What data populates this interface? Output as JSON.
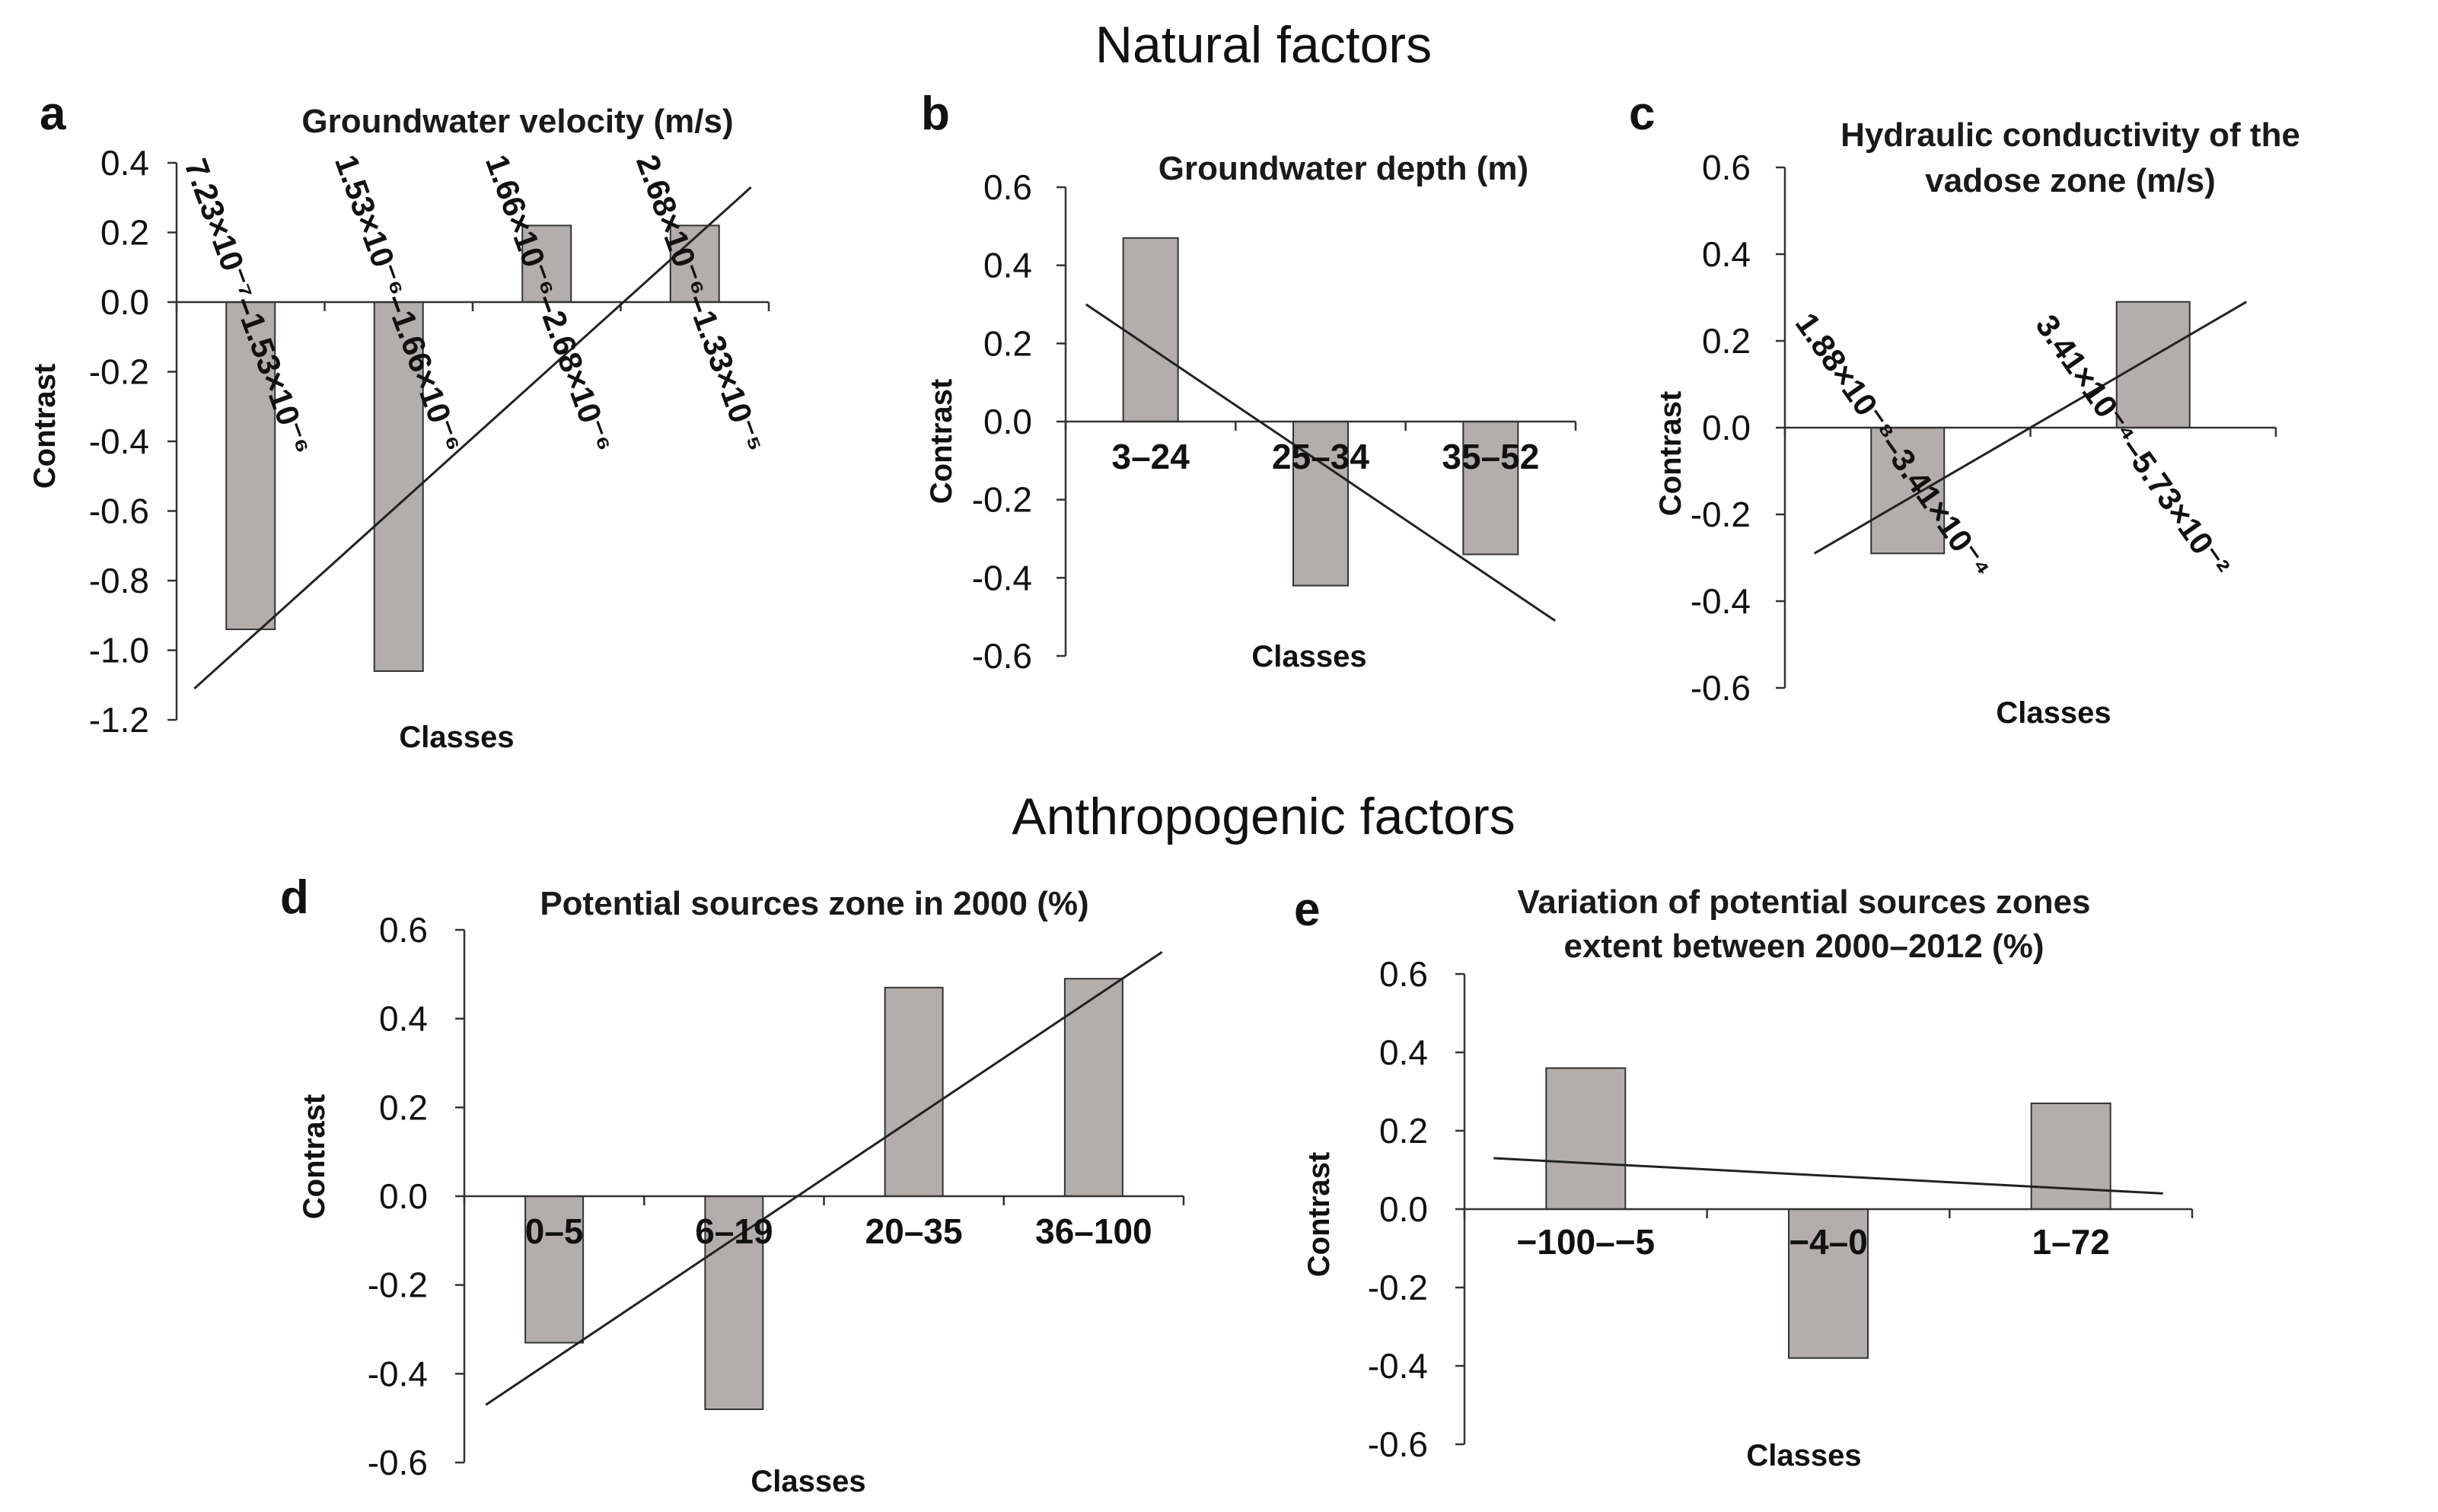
{
  "figure": {
    "section_natural": "Natural factors",
    "section_anthropogenic": "Anthropogenic factors"
  },
  "chart_data": [
    {
      "panel": "a",
      "type": "bar",
      "title": [
        "Groundwater velocity (m/s)"
      ],
      "xlabel": "Classes",
      "ylabel": "Contrast",
      "ylim": [
        -1.2,
        0.4
      ],
      "yticks": [
        0.4,
        0.2,
        0.0,
        -0.2,
        -0.4,
        -0.6,
        -0.8,
        -1.0,
        -1.2
      ],
      "ytick_labels": [
        "0.4",
        "0.2",
        "0.0",
        "-0.2",
        "-0.4",
        "-0.6",
        "-0.8",
        "-1.0",
        "-1.2"
      ],
      "categories": [
        "7.23×10⁻⁷–1.53×10⁻⁶",
        "1.53×10⁻⁶–1.66×10⁻⁶",
        "1.66×10⁻⁶–2.68×10⁻⁶",
        "2.68×10⁻⁶–1.33×10⁻⁵"
      ],
      "values": [
        -0.94,
        -1.06,
        0.22,
        0.22
      ],
      "trendline": [
        -1.11,
        0.33
      ],
      "rotated_labels": true
    },
    {
      "panel": "b",
      "type": "bar",
      "title": [
        "Groundwater depth (m)"
      ],
      "xlabel": "Classes",
      "ylabel": "Contrast",
      "ylim": [
        -0.6,
        0.6
      ],
      "yticks": [
        0.6,
        0.4,
        0.2,
        0.0,
        -0.2,
        -0.4,
        -0.6
      ],
      "ytick_labels": [
        "0.6",
        "0.4",
        "0.2",
        "0.0",
        "-0.2",
        "-0.4",
        "-0.6"
      ],
      "categories": [
        "3–24",
        "25–34",
        "35–52"
      ],
      "values": [
        0.47,
        -0.42,
        -0.34
      ],
      "trendline": [
        0.3,
        -0.51
      ],
      "rotated_labels": false
    },
    {
      "panel": "c",
      "type": "bar",
      "title": [
        "Hydraulic conductivity of the",
        "vadose zone (m/s)"
      ],
      "xlabel": "Classes",
      "ylabel": "Contrast",
      "ylim": [
        -0.6,
        0.6
      ],
      "yticks": [
        0.6,
        0.4,
        0.2,
        0.0,
        -0.2,
        -0.4,
        -0.6
      ],
      "ytick_labels": [
        "0.6",
        "0.4",
        "0.2",
        "0.0",
        "-0.2",
        "-0.4",
        "-0.6"
      ],
      "categories": [
        "1.88×10⁻⁸–3.41×10⁻⁴",
        "3.41×10⁻⁴–5.73×10⁻²"
      ],
      "values": [
        -0.29,
        0.29
      ],
      "trendline": [
        -0.29,
        0.29
      ],
      "rotated_labels": true
    },
    {
      "panel": "d",
      "type": "bar",
      "title": [
        "Potential sources zone in 2000 (%)"
      ],
      "xlabel": "Classes",
      "ylabel": "Contrast",
      "ylim": [
        -0.6,
        0.6
      ],
      "yticks": [
        0.6,
        0.4,
        0.2,
        0.0,
        -0.2,
        -0.4,
        -0.6
      ],
      "ytick_labels": [
        "0.6",
        "0.4",
        "0.2",
        "0.0",
        "-0.2",
        "-0.4",
        "-0.6"
      ],
      "categories": [
        "0–5",
        "6–19",
        "20–35",
        "36–100"
      ],
      "values": [
        -0.33,
        -0.48,
        0.47,
        0.49
      ],
      "trendline": [
        -0.47,
        0.55
      ],
      "rotated_labels": false
    },
    {
      "panel": "e",
      "type": "bar",
      "title": [
        "Variation of potential sources zones",
        "extent between 2000–2012 (%)"
      ],
      "xlabel": "Classes",
      "ylabel": "Contrast",
      "ylim": [
        -0.6,
        0.6
      ],
      "yticks": [
        0.6,
        0.4,
        0.2,
        0.0,
        -0.2,
        -0.4,
        -0.6
      ],
      "ytick_labels": [
        "0.6",
        "0.4",
        "0.2",
        "0.0",
        "-0.2",
        "-0.4",
        "-0.6"
      ],
      "categories": [
        "−100–−5",
        "−4–0",
        "1–72"
      ],
      "values": [
        0.36,
        -0.38,
        0.27
      ],
      "trendline": [
        0.13,
        0.04
      ],
      "rotated_labels": false
    }
  ]
}
